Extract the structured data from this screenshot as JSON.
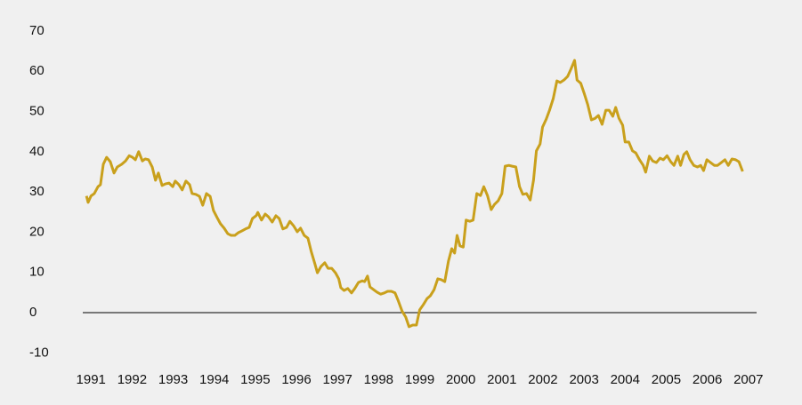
{
  "chart_data": {
    "type": "line",
    "x": [
      1990.89,
      1990.93,
      1991.0,
      1991.08,
      1991.17,
      1991.23,
      1991.3,
      1991.38,
      1991.47,
      1991.56,
      1991.64,
      1991.75,
      1991.84,
      1991.93,
      1992.01,
      1992.08,
      1992.16,
      1992.25,
      1992.32,
      1992.4,
      1992.49,
      1992.57,
      1992.64,
      1992.73,
      1992.81,
      1992.9,
      1992.99,
      1993.05,
      1993.14,
      1993.22,
      1993.31,
      1993.4,
      1993.46,
      1993.55,
      1993.64,
      1993.72,
      1993.81,
      1993.9,
      1993.98,
      1994.07,
      1994.15,
      1994.24,
      1994.33,
      1994.41,
      1994.5,
      1994.59,
      1994.67,
      1994.76,
      1994.85,
      1994.93,
      1995.02,
      1995.06,
      1995.15,
      1995.24,
      1995.32,
      1995.41,
      1995.5,
      1995.58,
      1995.67,
      1995.76,
      1995.84,
      1995.93,
      1996.02,
      1996.1,
      1996.19,
      1996.28,
      1996.36,
      1996.45,
      1996.51,
      1996.6,
      1996.69,
      1996.77,
      1996.86,
      1996.95,
      1997.03,
      1997.08,
      1997.16,
      1997.25,
      1997.34,
      1997.42,
      1997.51,
      1997.6,
      1997.66,
      1997.73,
      1997.79,
      1997.88,
      1997.96,
      1998.05,
      1998.14,
      1998.22,
      1998.31,
      1998.4,
      1998.48,
      1998.57,
      1998.66,
      1998.74,
      1998.83,
      1998.92,
      1999.0,
      1999.09,
      1999.18,
      1999.26,
      1999.35,
      1999.44,
      1999.52,
      1999.61,
      1999.7,
      1999.78,
      1999.85,
      1999.91,
      1999.98,
      2000.06,
      2000.13,
      2000.22,
      2000.3,
      2000.39,
      2000.48,
      2000.56,
      2000.65,
      2000.74,
      2000.82,
      2000.91,
      2001.0,
      2001.08,
      2001.17,
      2001.25,
      2001.34,
      2001.43,
      2001.51,
      2001.6,
      2001.69,
      2001.77,
      2001.84,
      2001.93,
      2001.99,
      2002.08,
      2002.16,
      2002.25,
      2002.34,
      2002.42,
      2002.51,
      2002.6,
      2002.68,
      2002.77,
      2002.83,
      2002.92,
      2003.01,
      2003.09,
      2003.18,
      2003.27,
      2003.35,
      2003.44,
      2003.53,
      2003.61,
      2003.7,
      2003.77,
      2003.85,
      2003.94,
      2004.0,
      2004.09,
      2004.18,
      2004.26,
      2004.35,
      2004.44,
      2004.5,
      2004.59,
      2004.67,
      2004.76,
      2004.85,
      2004.93,
      2005.02,
      2005.11,
      2005.19,
      2005.28,
      2005.35,
      2005.43,
      2005.5,
      2005.58,
      2005.67,
      2005.76,
      2005.84,
      2005.91,
      2005.99,
      2006.08,
      2006.17,
      2006.25,
      2006.34,
      2006.43,
      2006.51,
      2006.6,
      2006.69,
      2006.77,
      2006.86
    ],
    "series": [
      {
        "color": "#c9a01c",
        "values": [
          29,
          27.4,
          29,
          29.6,
          31.3,
          31.8,
          36.9,
          38.6,
          37.5,
          34.7,
          36.2,
          36.9,
          37.7,
          39,
          38.6,
          38,
          40,
          37.7,
          38.2,
          38,
          36.2,
          32.9,
          34.7,
          31.6,
          32,
          32.2,
          31.3,
          32.7,
          31.8,
          30.5,
          32.7,
          31.8,
          29.6,
          29.4,
          28.9,
          26.7,
          29.6,
          28.9,
          25.4,
          23.6,
          22.1,
          21,
          19.6,
          19.2,
          19.2,
          19.9,
          20.3,
          20.8,
          21.2,
          23.4,
          24.1,
          24.9,
          23,
          24.5,
          23.8,
          22.5,
          24.1,
          23.4,
          20.8,
          21.2,
          22.7,
          21.6,
          20.1,
          21,
          19.2,
          18.5,
          15.2,
          12.1,
          9.9,
          11.5,
          12.4,
          11,
          11,
          9.9,
          8.4,
          6.2,
          5.5,
          6,
          4.9,
          6,
          7.5,
          7.9,
          7.7,
          9.1,
          6.4,
          5.7,
          5.1,
          4.6,
          4.9,
          5.3,
          5.3,
          4.9,
          2.9,
          0.4,
          -1.1,
          -3.5,
          -3.1,
          -3.1,
          0.7,
          2,
          3.5,
          4.2,
          5.7,
          8.4,
          8.2,
          7.7,
          12.8,
          15.9,
          14.8,
          19.2,
          16.6,
          16.3,
          23,
          22.7,
          23,
          29.6,
          29.1,
          31.3,
          29.1,
          25.6,
          26.9,
          27.8,
          29.6,
          36.4,
          36.6,
          36.4,
          36.2,
          31.3,
          29.4,
          29.6,
          28,
          32.9,
          40.2,
          41.9,
          46.1,
          48.1,
          50.3,
          53.2,
          57.6,
          57.2,
          57.8,
          58.7,
          60.5,
          62.7,
          57.8,
          57,
          54.3,
          51.7,
          47.9,
          48.3,
          49,
          46.8,
          50.3,
          50.3,
          48.8,
          51,
          48.3,
          46.6,
          42.4,
          42.4,
          40.2,
          39.7,
          38,
          36.6,
          34.9,
          38.9,
          37.7,
          37.3,
          38.4,
          38,
          39,
          37.5,
          36.6,
          38.9,
          36.6,
          39.3,
          40,
          38,
          36.6,
          36.2,
          36.6,
          35.3,
          38,
          37.3,
          36.6,
          36.6,
          37.3,
          38,
          36.6,
          38.2,
          38,
          37.5,
          35.1
        ]
      }
    ],
    "xlim": [
      1990.8,
      2007.2
    ],
    "xticks": [
      1991,
      1992,
      1993,
      1994,
      1995,
      1996,
      1997,
      1998,
      1999,
      2000,
      2001,
      2002,
      2003,
      2004,
      2005,
      2006,
      2007
    ],
    "ylim": [
      -13,
      73
    ],
    "yticks": [
      -10,
      0,
      10,
      20,
      30,
      40,
      50,
      60,
      70
    ],
    "grid": false
  }
}
